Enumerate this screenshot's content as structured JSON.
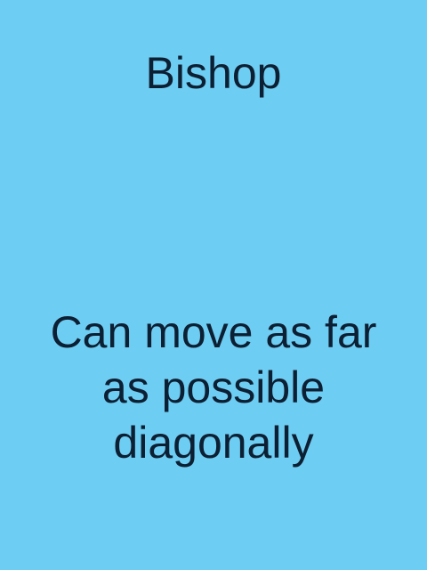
{
  "card": {
    "title": "Bishop",
    "description_lines": [
      "Can move as far",
      "as possible",
      "diagonally"
    ],
    "background_color": "#6ecdf2",
    "text_color": "#0c1f33"
  }
}
